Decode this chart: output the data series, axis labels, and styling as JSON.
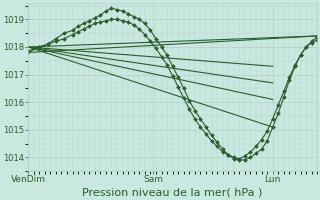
{
  "bg_color": "#c8e8e0",
  "grid_color": "#b0d0c8",
  "line_color": "#2a5e2a",
  "marker_color": "#2a5e2a",
  "xlabel": "Pression niveau de la mer( hPa )",
  "xlabel_fontsize": 8,
  "yticks": [
    1014,
    1015,
    1016,
    1017,
    1018,
    1019
  ],
  "ylim": [
    1013.5,
    1019.6
  ],
  "xtick_labels": [
    "VenDim",
    "Sam",
    "Lun"
  ],
  "xtick_positions": [
    0.0,
    0.45,
    0.88
  ],
  "xlim": [
    0.0,
    1.04
  ],
  "series": [
    {
      "x": [
        0.0,
        1.04
      ],
      "y": [
        1017.8,
        1018.4
      ],
      "marker": null,
      "ms": 0,
      "lw": 0.8
    },
    {
      "x": [
        0.0,
        0.88
      ],
      "y": [
        1018.0,
        1015.1
      ],
      "marker": null,
      "ms": 0,
      "lw": 0.8
    },
    {
      "x": [
        0.0,
        0.88
      ],
      "y": [
        1018.0,
        1016.1
      ],
      "marker": null,
      "ms": 0,
      "lw": 0.8
    },
    {
      "x": [
        0.0,
        0.88
      ],
      "y": [
        1018.0,
        1016.7
      ],
      "marker": null,
      "ms": 0,
      "lw": 0.8
    },
    {
      "x": [
        0.0,
        0.88
      ],
      "y": [
        1018.0,
        1017.3
      ],
      "marker": null,
      "ms": 0,
      "lw": 0.8
    },
    {
      "x": [
        0.0,
        1.04
      ],
      "y": [
        1018.0,
        1018.4
      ],
      "marker": null,
      "ms": 0,
      "lw": 0.8
    },
    {
      "x": [
        0.0,
        0.04,
        0.07,
        0.1,
        0.13,
        0.16,
        0.18,
        0.2,
        0.22,
        0.24,
        0.26,
        0.28,
        0.3,
        0.32,
        0.34,
        0.36,
        0.38,
        0.4,
        0.42,
        0.44,
        0.46,
        0.48,
        0.5,
        0.52,
        0.54,
        0.56,
        0.58,
        0.6,
        0.62,
        0.64,
        0.66,
        0.68,
        0.7,
        0.72,
        0.74,
        0.76,
        0.78,
        0.8,
        0.82,
        0.84,
        0.86,
        0.88,
        0.9,
        0.92,
        0.94,
        0.96,
        0.98,
        1.0,
        1.02,
        1.04
      ],
      "y": [
        1017.8,
        1018.0,
        1018.1,
        1018.3,
        1018.5,
        1018.6,
        1018.75,
        1018.85,
        1018.95,
        1019.05,
        1019.15,
        1019.3,
        1019.4,
        1019.35,
        1019.3,
        1019.2,
        1019.1,
        1019.0,
        1018.85,
        1018.6,
        1018.3,
        1018.0,
        1017.7,
        1017.3,
        1016.9,
        1016.5,
        1016.05,
        1015.7,
        1015.4,
        1015.1,
        1014.8,
        1014.55,
        1014.3,
        1014.1,
        1013.95,
        1013.9,
        1013.92,
        1014.0,
        1014.15,
        1014.3,
        1014.6,
        1015.1,
        1015.6,
        1016.2,
        1016.8,
        1017.3,
        1017.7,
        1018.0,
        1018.2,
        1018.35
      ],
      "marker": "D",
      "ms": 2,
      "lw": 0.8
    },
    {
      "x": [
        0.0,
        0.04,
        0.07,
        0.1,
        0.13,
        0.16,
        0.18,
        0.2,
        0.22,
        0.24,
        0.26,
        0.28,
        0.3,
        0.32,
        0.34,
        0.36,
        0.38,
        0.4,
        0.42,
        0.44,
        0.46,
        0.48,
        0.5,
        0.52,
        0.54,
        0.56,
        0.58,
        0.6,
        0.62,
        0.64,
        0.66,
        0.68,
        0.7,
        0.72,
        0.74,
        0.76,
        0.78,
        0.8,
        0.82,
        0.84,
        0.86,
        0.88,
        0.9,
        0.92,
        0.94,
        0.96,
        0.98,
        1.0,
        1.02,
        1.04
      ],
      "y": [
        1017.85,
        1018.0,
        1018.1,
        1018.2,
        1018.3,
        1018.45,
        1018.55,
        1018.65,
        1018.75,
        1018.85,
        1018.9,
        1018.95,
        1019.0,
        1019.0,
        1018.95,
        1018.9,
        1018.8,
        1018.65,
        1018.45,
        1018.2,
        1017.95,
        1017.65,
        1017.35,
        1016.95,
        1016.55,
        1016.15,
        1015.75,
        1015.4,
        1015.1,
        1014.85,
        1014.6,
        1014.4,
        1014.2,
        1014.1,
        1014.0,
        1013.95,
        1014.05,
        1014.2,
        1014.4,
        1014.65,
        1014.95,
        1015.4,
        1015.9,
        1016.4,
        1016.9,
        1017.35,
        1017.7,
        1018.0,
        1018.15,
        1018.25
      ],
      "marker": "D",
      "ms": 2,
      "lw": 0.8
    }
  ]
}
